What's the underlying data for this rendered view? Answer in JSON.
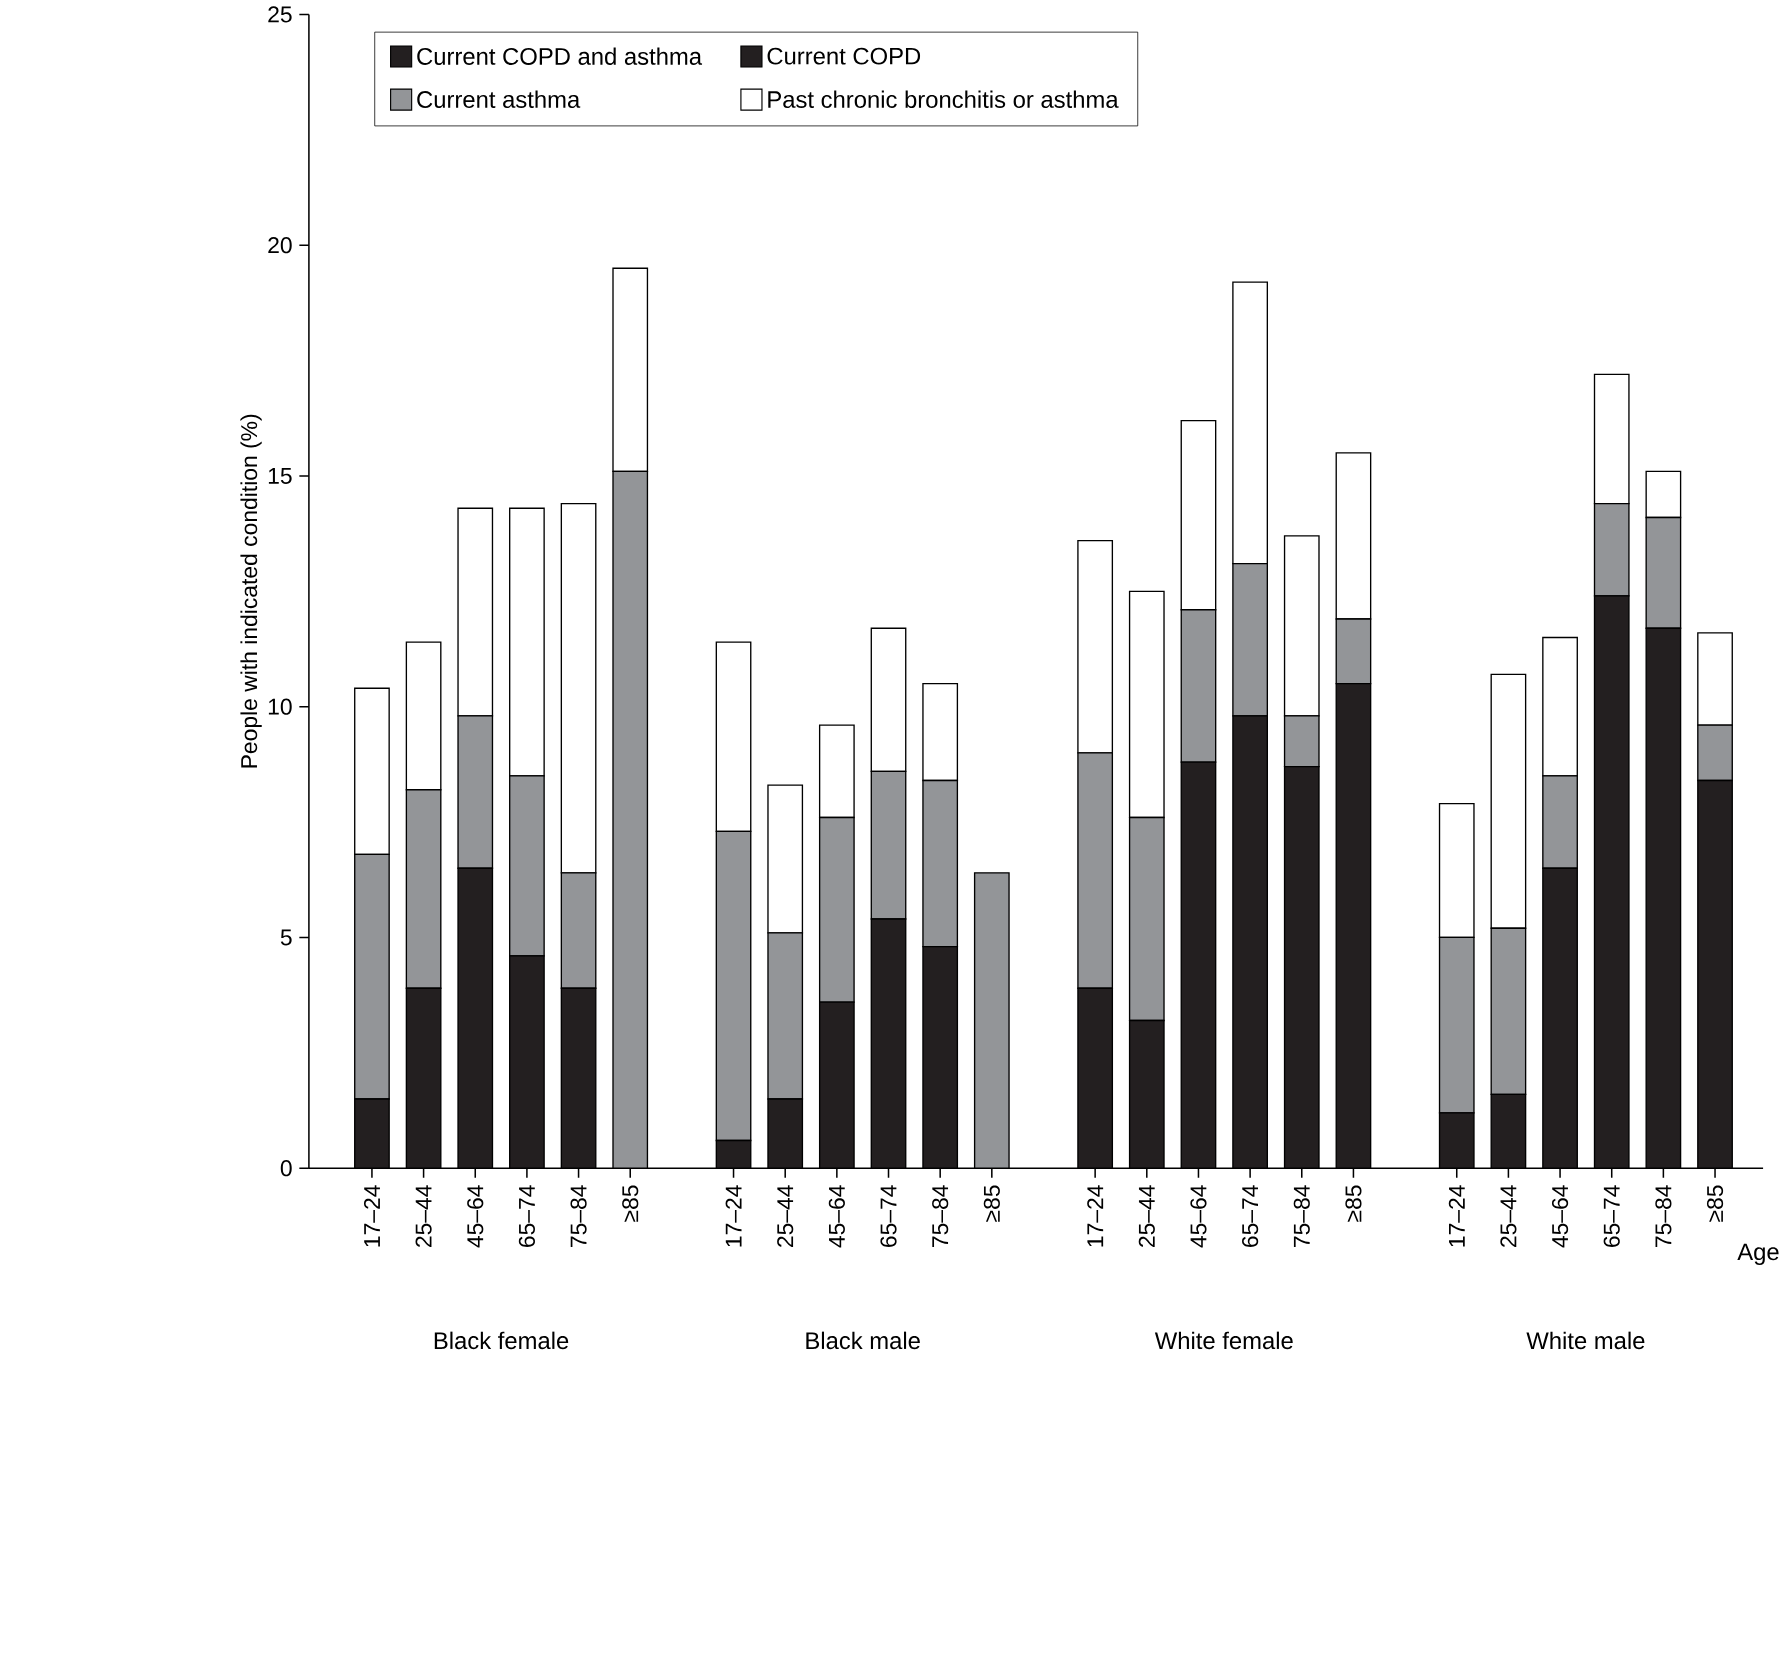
{
  "chart_data": {
    "type": "bar",
    "stacked": true,
    "xlabel": "Age",
    "ylabel": "People with indicated condition (%)",
    "categories": [
      "17–24",
      "25–44",
      "45–64",
      "65–74",
      "75–84",
      "≥85",
      "17–24",
      "25–44",
      "45–64",
      "65–74",
      "75–84",
      "≥85",
      "17–24",
      "25–44",
      "45–64",
      "65–74",
      "75–84",
      "≥85",
      "17–24",
      "25–44",
      "45–64",
      "65–74",
      "75–84",
      "≥85"
    ],
    "series": [
      {
        "name": "Current COPD and asthma",
        "color": "#231f20",
        "values": [
          null,
          null,
          null,
          null,
          null,
          null,
          null,
          null,
          null,
          null,
          null,
          null,
          null,
          null,
          null,
          null,
          null,
          null,
          null,
          null,
          null,
          null,
          null,
          null
        ]
      },
      {
        "name": "Current COPD",
        "color": "#231f20",
        "values": [
          1.5,
          3.9,
          6.5,
          4.6,
          3.9,
          0,
          0.6,
          1.5,
          3.6,
          5.4,
          4.8,
          0,
          3.9,
          3.2,
          8.8,
          9.8,
          8.7,
          10.5,
          1.2,
          1.6,
          6.5,
          12.4,
          11.7,
          8.4
        ]
      },
      {
        "name": "Current asthma",
        "color": "#939598",
        "values": [
          5.3,
          4.3,
          3.3,
          3.9,
          2.5,
          15.1,
          6.7,
          3.6,
          4.0,
          3.2,
          3.6,
          6.4,
          5.1,
          4.4,
          3.3,
          3.3,
          1.1,
          1.4,
          3.8,
          3.6,
          2.0,
          2.0,
          2.4,
          1.2
        ]
      },
      {
        "name": "Past chronic bronchitis or asthma",
        "color": "#ffffff",
        "values": [
          3.6,
          3.2,
          4.5,
          5.8,
          8.0,
          4.4,
          4.1,
          3.2,
          2.0,
          3.1,
          2.1,
          0,
          4.6,
          4.9,
          4.1,
          6.1,
          3.9,
          3.6,
          2.9,
          5.5,
          3.0,
          2.8,
          1.0,
          2.0
        ]
      }
    ],
    "ylim": [
      0,
      25
    ],
    "yticks": [
      0,
      5,
      10,
      15,
      20,
      25
    ],
    "legend": "top left",
    "grid": false,
    "annotations": [
      "Black female",
      "Black male",
      "White female",
      "White male"
    ]
  }
}
